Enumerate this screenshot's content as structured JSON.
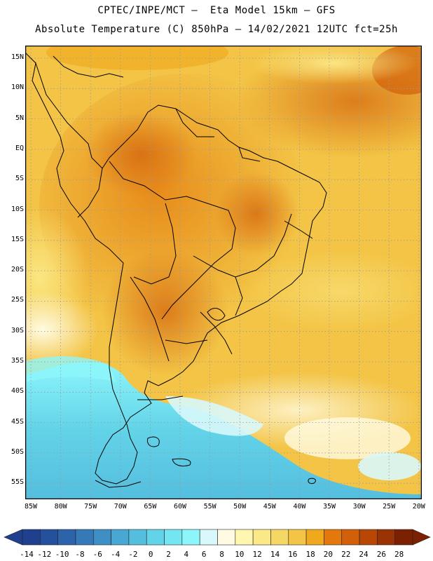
{
  "header": {
    "line1": "CPTEC/INPE/MCT –  Eta Model 15km – GFS",
    "line2": "Absolute Temperature (C) 850hPa – 14/02/2021 12UTC fct=25h"
  },
  "axes": {
    "lat_labels": [
      "15N",
      "10N",
      "5N",
      "EQ",
      "5S",
      "10S",
      "15S",
      "20S",
      "25S",
      "30S",
      "35S",
      "40S",
      "45S",
      "50S",
      "55S"
    ],
    "lon_labels": [
      "85W",
      "80W",
      "75W",
      "70W",
      "65W",
      "60W",
      "55W",
      "50W",
      "45W",
      "40W",
      "35W",
      "30W",
      "25W",
      "20W"
    ]
  },
  "colorbar": {
    "labels": [
      "-14",
      "-12",
      "-10",
      "-8",
      "-6",
      "-4",
      "-2",
      "0",
      "2",
      "4",
      "6",
      "8",
      "10",
      "12",
      "14",
      "16",
      "18",
      "20",
      "22",
      "24",
      "26",
      "28"
    ],
    "colors": [
      "#1f3f8f",
      "#25509e",
      "#2c63ab",
      "#3579b8",
      "#3f8fc6",
      "#49a7d3",
      "#55bedf",
      "#62d3e8",
      "#74e6f1",
      "#8df6fb",
      "#d8f8fb",
      "#fffbe2",
      "#fff6b0",
      "#fbe886",
      "#f5d765",
      "#f3c445",
      "#f0a91c",
      "#e3790d",
      "#d25f0a",
      "#b84706",
      "#993304",
      "#7b2102"
    ]
  }
}
